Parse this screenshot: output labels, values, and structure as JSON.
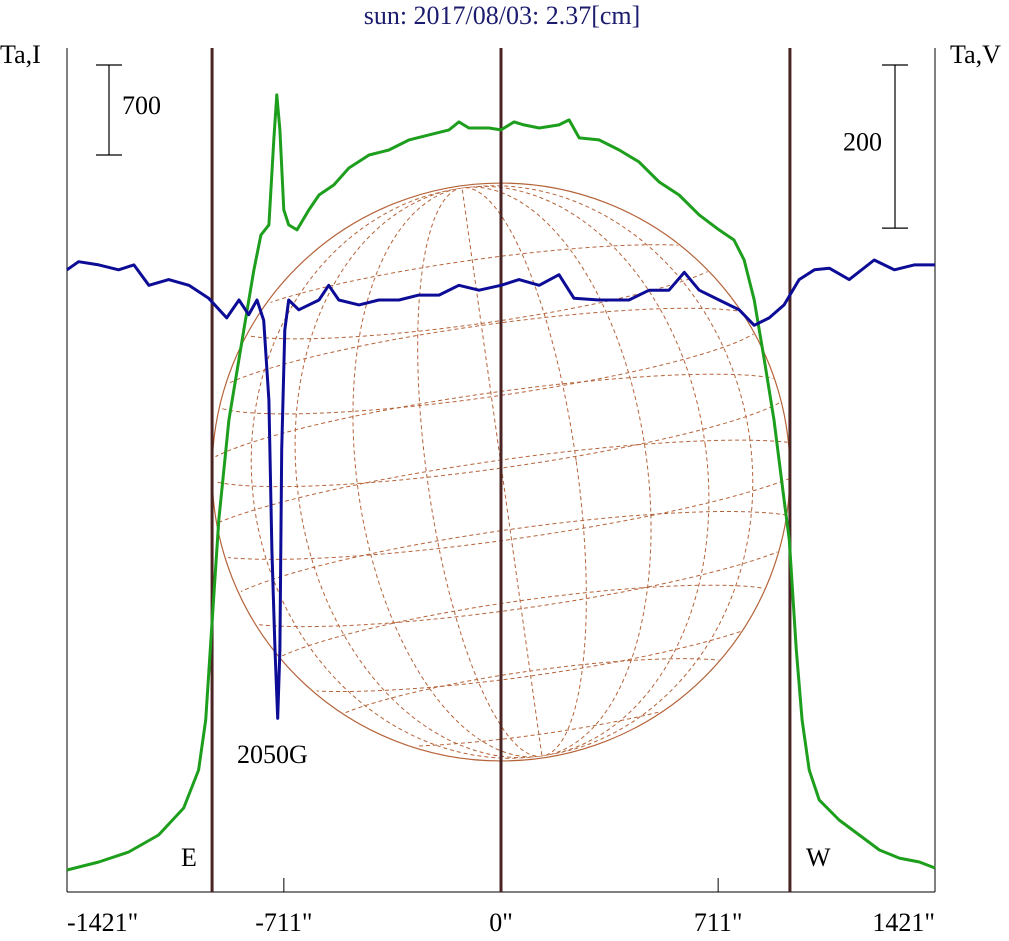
{
  "chart_data": {
    "type": "line",
    "title": "sun: 2017/08/03: 2.37[cm]",
    "ylabel": "Ta,I",
    "y2label": "Ta,V",
    "yscale": 700,
    "y2scale": 200,
    "xlim": [
      -1421,
      1421
    ],
    "xticks": [
      {
        "value": -1421,
        "label": "-1421\""
      },
      {
        "value": -711,
        "label": "-711\""
      },
      {
        "value": 0,
        "label": "0\""
      },
      {
        "value": 711,
        "label": "711\""
      },
      {
        "value": 1421,
        "label": "1421\""
      }
    ],
    "ylim": [
      0,
      6564
    ],
    "y2lim": [
      -726,
      309
    ],
    "vlines": [
      -946,
      0,
      946
    ],
    "annotations": [
      "2050G",
      "E",
      "W"
    ],
    "series": [
      {
        "color": "#1d9e1d",
        "axis": "y",
        "x": [
          -1421,
          -1317,
          -1219,
          -1121,
          -1039,
          -990,
          -967,
          -950,
          -924,
          -891,
          -842,
          -809,
          -786,
          -760,
          -744,
          -734,
          -724,
          -711,
          -695,
          -668,
          -629,
          -596,
          -547,
          -498,
          -432,
          -367,
          -301,
          -236,
          -170,
          -138,
          -105,
          -39,
          0,
          43,
          75,
          125,
          190,
          223,
          256,
          321,
          387,
          452,
          518,
          583,
          649,
          714,
          763,
          796,
          829,
          862,
          894,
          927,
          944,
          967,
          986,
          1009,
          1042,
          1107,
          1173,
          1239,
          1304,
          1370,
          1421
        ],
        "values": [
          171,
          233,
          311,
          443,
          653,
          949,
          1338,
          1960,
          2893,
          3671,
          4371,
          4838,
          5110,
          5188,
          5849,
          6199,
          5927,
          5305,
          5188,
          5149,
          5305,
          5421,
          5499,
          5631,
          5732,
          5771,
          5849,
          5888,
          5927,
          5989,
          5942,
          5942,
          5927,
          5989,
          5966,
          5942,
          5966,
          6005,
          5865,
          5849,
          5771,
          5678,
          5522,
          5421,
          5266,
          5149,
          5071,
          4916,
          4605,
          4138,
          3671,
          3049,
          2738,
          1882,
          1338,
          949,
          716,
          560,
          443,
          327,
          264,
          233,
          187
        ]
      },
      {
        "color": "#0c0c96",
        "axis": "y2",
        "x": [
          -1421,
          -1383,
          -1317,
          -1252,
          -1202,
          -1153,
          -1088,
          -1022,
          -957,
          -898,
          -858,
          -826,
          -799,
          -777,
          -760,
          -750,
          -740,
          -731,
          -724,
          -718,
          -708,
          -695,
          -662,
          -596,
          -564,
          -531,
          -465,
          -400,
          -334,
          -269,
          -203,
          -138,
          -72,
          0,
          59,
          125,
          190,
          239,
          321,
          419,
          485,
          550,
          600,
          649,
          714,
          780,
          829,
          878,
          927,
          976,
          1026,
          1075,
          1140,
          1222,
          1288,
          1353,
          1421
        ],
        "values": [
          37,
          47,
          43,
          37,
          43,
          18,
          25,
          18,
          2,
          -22,
          0,
          -18,
          0,
          -25,
          -123,
          -307,
          -429,
          -513,
          -429,
          -184,
          -37,
          0,
          -12,
          0,
          18,
          0,
          -6,
          0,
          0,
          6,
          6,
          18,
          12,
          18,
          25,
          18,
          31,
          2,
          0,
          0,
          12,
          12,
          34,
          12,
          0,
          -12,
          -31,
          -22,
          -6,
          25,
          37,
          39,
          25,
          49,
          37,
          43,
          43
        ]
      }
    ]
  }
}
